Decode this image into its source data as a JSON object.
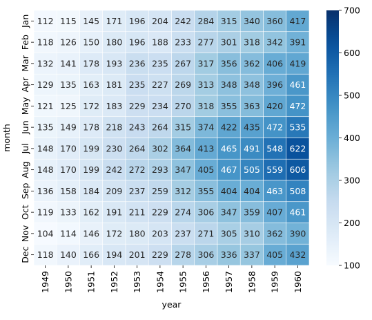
{
  "chart_data": {
    "type": "heatmap",
    "xlabel": "year",
    "ylabel": "month",
    "x_categories": [
      "1949",
      "1950",
      "1951",
      "1952",
      "1953",
      "1954",
      "1955",
      "1956",
      "1957",
      "1958",
      "1959",
      "1960"
    ],
    "y_categories": [
      "Jan",
      "Feb",
      "Mar",
      "Apr",
      "May",
      "Jun",
      "Jul",
      "Aug",
      "Sep",
      "Oct",
      "Nov",
      "Dec"
    ],
    "values": [
      [
        112,
        115,
        145,
        171,
        196,
        204,
        242,
        284,
        315,
        340,
        360,
        417
      ],
      [
        118,
        126,
        150,
        180,
        196,
        188,
        233,
        277,
        301,
        318,
        342,
        391
      ],
      [
        132,
        141,
        178,
        193,
        236,
        235,
        267,
        317,
        356,
        362,
        406,
        419
      ],
      [
        129,
        135,
        163,
        181,
        235,
        227,
        269,
        313,
        348,
        348,
        396,
        461
      ],
      [
        121,
        125,
        172,
        183,
        229,
        234,
        270,
        318,
        355,
        363,
        420,
        472
      ],
      [
        135,
        149,
        178,
        218,
        243,
        264,
        315,
        374,
        422,
        435,
        472,
        535
      ],
      [
        148,
        170,
        199,
        230,
        264,
        302,
        364,
        413,
        465,
        491,
        548,
        622
      ],
      [
        148,
        170,
        199,
        242,
        272,
        293,
        347,
        405,
        467,
        505,
        559,
        606
      ],
      [
        136,
        158,
        184,
        209,
        237,
        259,
        312,
        355,
        404,
        404,
        463,
        508
      ],
      [
        119,
        133,
        162,
        191,
        211,
        229,
        274,
        306,
        347,
        359,
        407,
        461
      ],
      [
        104,
        114,
        146,
        172,
        180,
        203,
        237,
        271,
        305,
        310,
        362,
        390
      ],
      [
        118,
        140,
        166,
        194,
        201,
        229,
        278,
        306,
        336,
        337,
        405,
        432
      ]
    ],
    "colorbar": {
      "cmap": "Blues",
      "range": [
        100,
        700
      ],
      "ticks": [
        100,
        200,
        300,
        400,
        500,
        600,
        700
      ]
    },
    "annotations": true
  }
}
